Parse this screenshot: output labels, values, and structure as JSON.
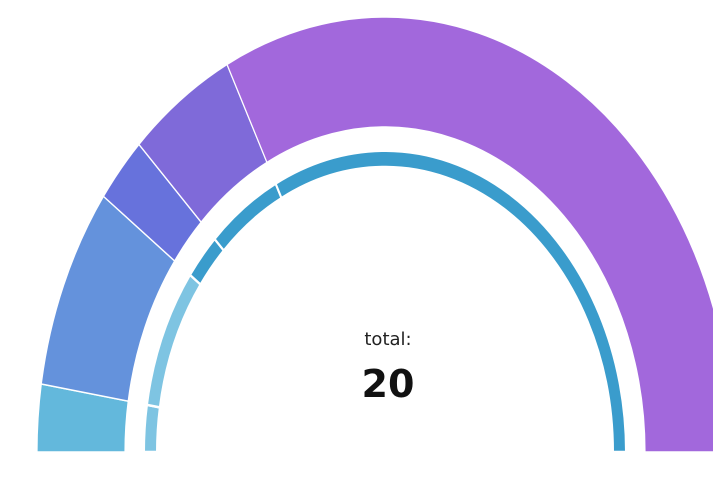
{
  "chart_data": {
    "type": "gauge",
    "values": [
      1,
      3,
      1,
      2,
      13
    ],
    "colors": [
      "#63b8dc",
      "#6492dc",
      "#6772dc",
      "#7f6ad9",
      "#a268dc"
    ],
    "inner_colors": [
      "#7ec4e2",
      "#7ec4e2",
      "#3a9ccc",
      "#3a9ccc",
      "#3a9ccc"
    ],
    "label": "total:",
    "total": 20
  }
}
